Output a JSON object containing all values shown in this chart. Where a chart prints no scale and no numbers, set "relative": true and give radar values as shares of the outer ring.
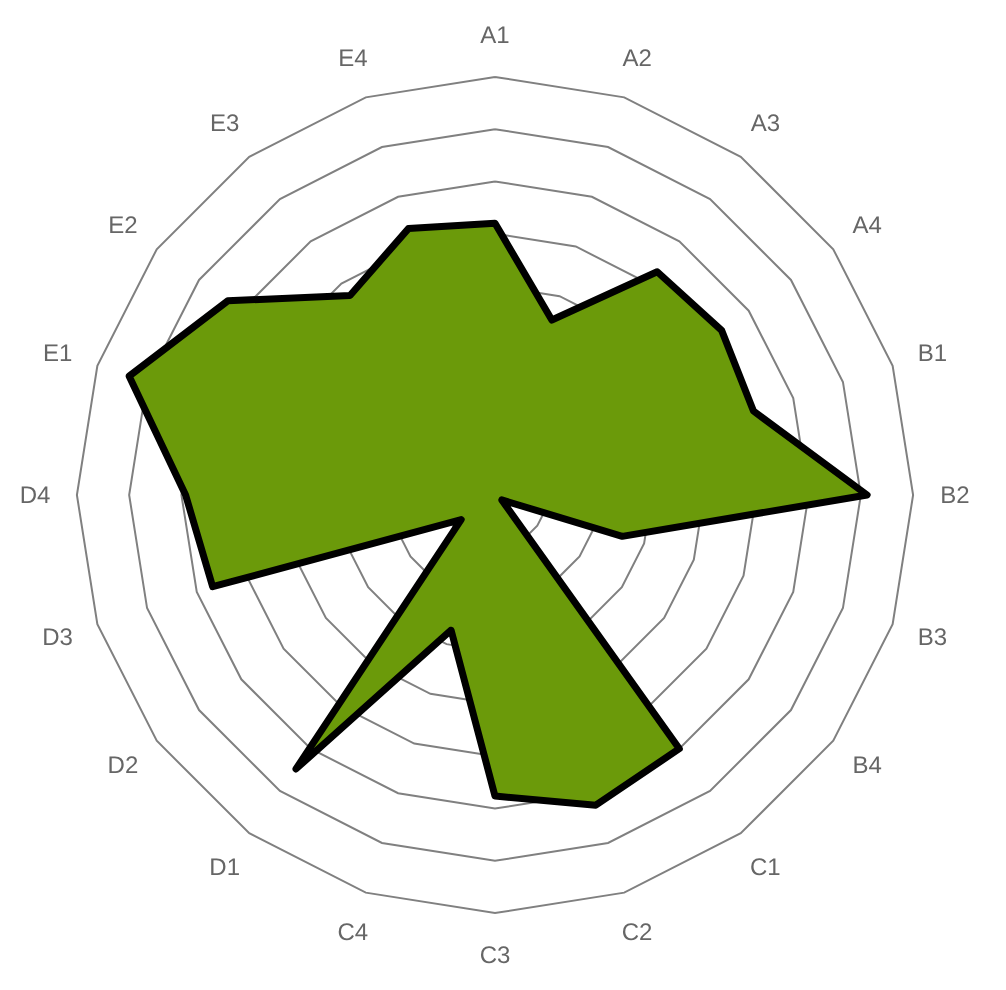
{
  "chart_data": {
    "type": "radar",
    "relative": true,
    "grid": true,
    "categories": [
      "A1",
      "A2",
      "A3",
      "A4",
      "B1",
      "B2",
      "B3",
      "B4",
      "C1",
      "C2",
      "C3",
      "C4",
      "D1",
      "D2",
      "D3",
      "D4",
      "E1",
      "E2",
      "E3",
      "E4"
    ],
    "series": [
      {
        "color": "#6b9a0a",
        "values": [
          0.65,
          0.44,
          0.66,
          0.67,
          0.65,
          0.89,
          0.32,
          0.02,
          0.75,
          0.78,
          0.72,
          0.34,
          0.81,
          0.1,
          0.71,
          0.74,
          0.92,
          0.79,
          0.59,
          0.67
        ]
      }
    ]
  }
}
